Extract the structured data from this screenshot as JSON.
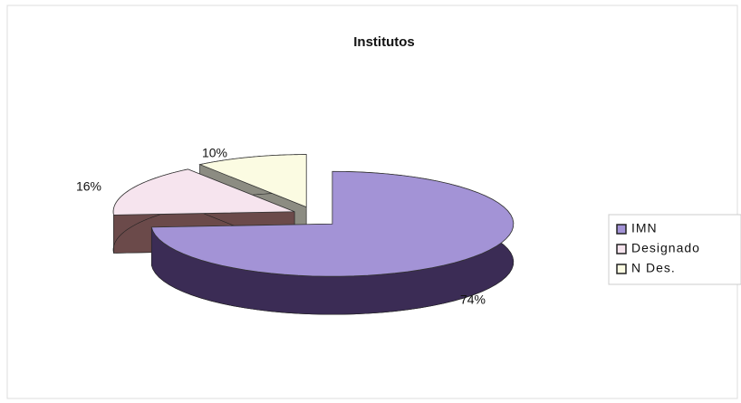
{
  "chart_data": {
    "type": "pie3d",
    "title": "Institutos",
    "categories": [
      "IMN",
      "Designado",
      "N Des."
    ],
    "values": [
      74,
      16,
      10
    ],
    "value_labels": [
      "74%",
      "16%",
      "10%"
    ],
    "colors": [
      "#a393d6",
      "#f6e4ee",
      "#fbfbe2"
    ],
    "legend": "right"
  }
}
